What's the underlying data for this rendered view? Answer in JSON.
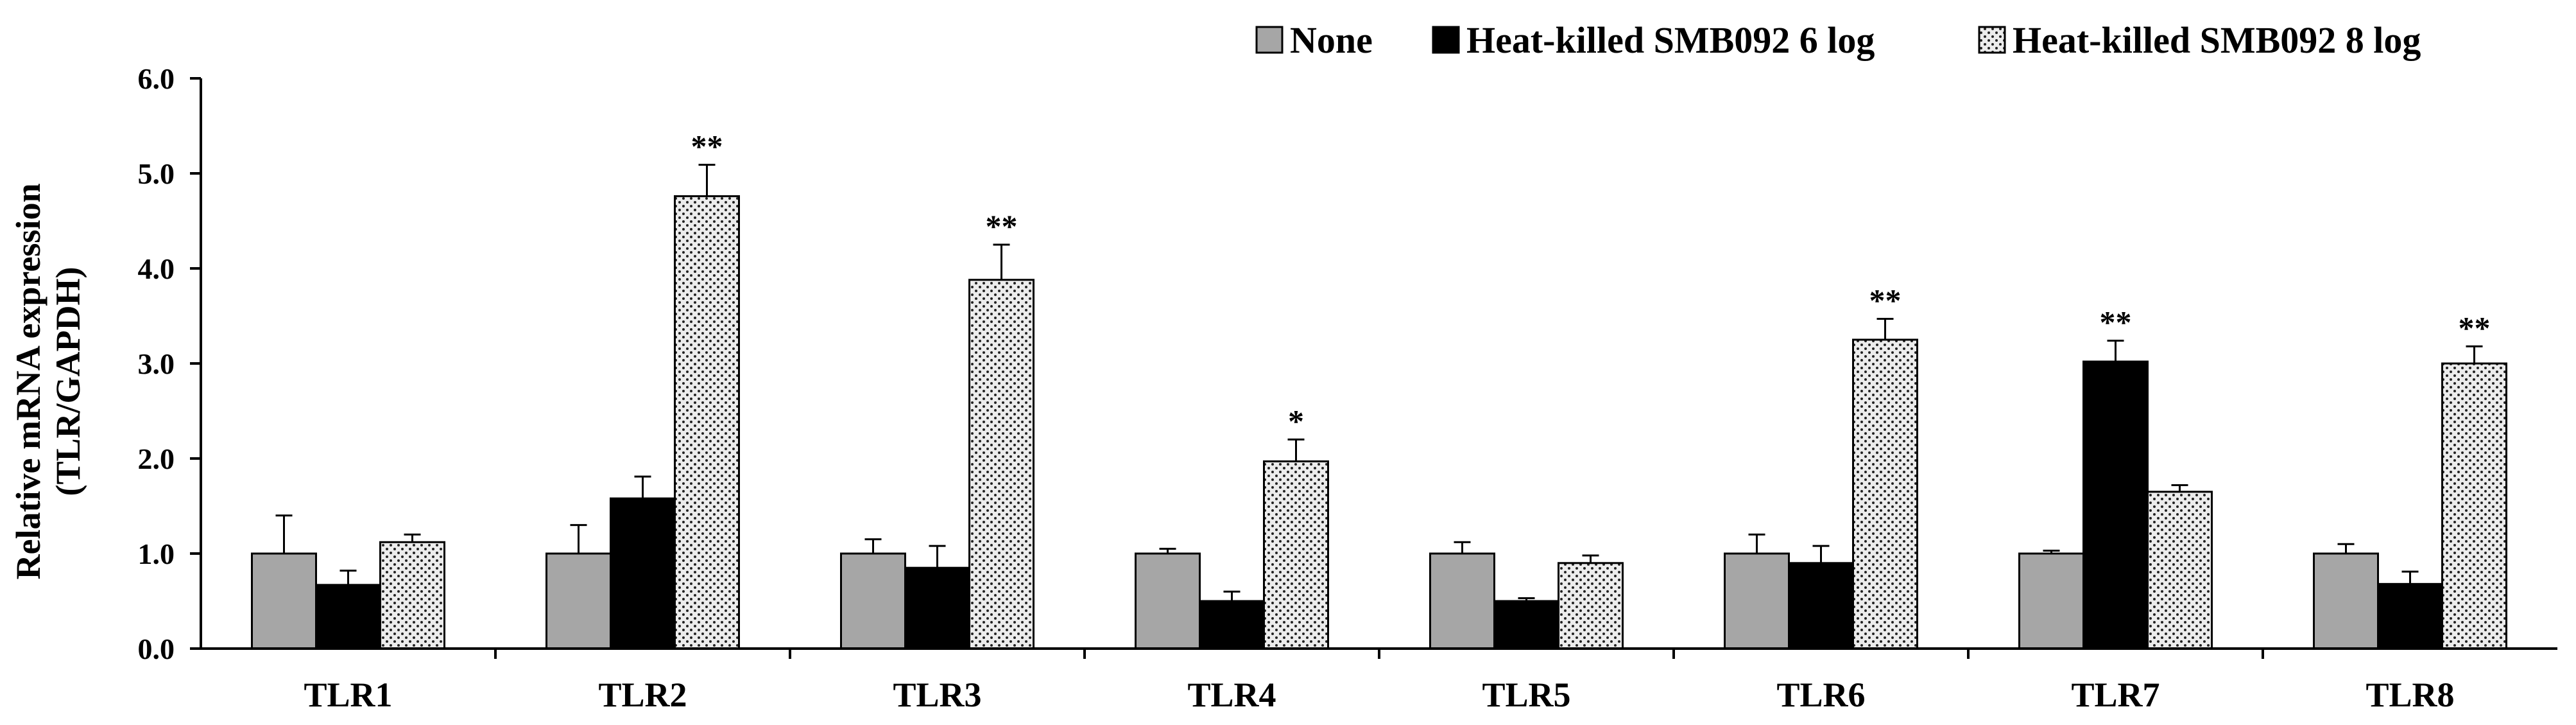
{
  "chart_data": {
    "type": "bar",
    "title": "",
    "xlabel": "",
    "ylabel": [
      "Relative mRNA expression",
      "(TLR/GAPDH)"
    ],
    "categories": [
      "TLR1",
      "TLR2",
      "TLR3",
      "TLR4",
      "TLR5",
      "TLR6",
      "TLR7",
      "TLR8"
    ],
    "ylim": [
      0,
      6
    ],
    "yticks": [
      "0.0",
      "1.0",
      "2.0",
      "3.0",
      "4.0",
      "5.0",
      "6.0"
    ],
    "legend_position": "top-right",
    "series": [
      {
        "name": "None",
        "values": [
          1.0,
          1.0,
          1.0,
          1.0,
          1.0,
          1.0,
          1.0,
          1.0
        ],
        "errors": [
          0.4,
          0.3,
          0.15,
          0.05,
          0.12,
          0.2,
          0.03,
          0.1
        ],
        "significance": [
          "",
          "",
          "",
          "",
          "",
          "",
          "",
          ""
        ]
      },
      {
        "name": "Heat-killed SMB092 6 log",
        "values": [
          0.67,
          1.58,
          0.85,
          0.5,
          0.5,
          0.9,
          3.02,
          0.68
        ],
        "errors": [
          0.15,
          0.23,
          0.23,
          0.1,
          0.03,
          0.18,
          0.22,
          0.13
        ],
        "significance": [
          "",
          "",
          "",
          "",
          "",
          "",
          "**",
          ""
        ]
      },
      {
        "name": "Heat-killed SMB092 8 log",
        "values": [
          1.12,
          4.76,
          3.88,
          1.97,
          0.9,
          3.25,
          1.65,
          3.0
        ],
        "errors": [
          0.08,
          0.33,
          0.37,
          0.23,
          0.08,
          0.22,
          0.07,
          0.18
        ],
        "significance": [
          "",
          "**",
          "**",
          "*",
          "",
          "**",
          "",
          "**"
        ]
      }
    ],
    "colors": {
      "None": "#a6a6a6",
      "Heat-killed SMB092 6 log": "#000000",
      "Heat-killed SMB092 8 log": "#ececec"
    }
  }
}
